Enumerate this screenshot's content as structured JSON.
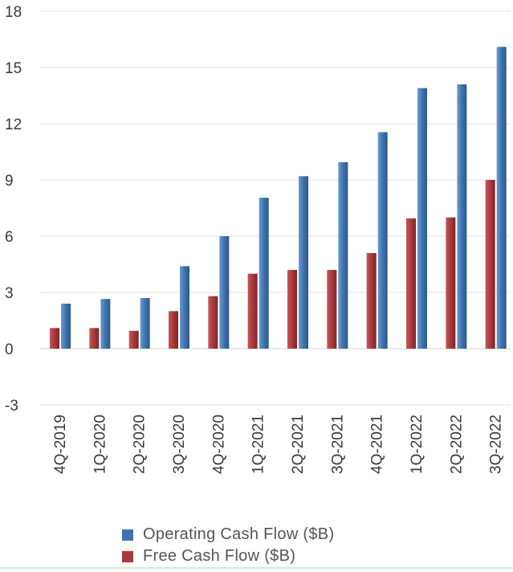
{
  "colors": {
    "operating": "#3f73ad",
    "free": "#a83a3c",
    "grid": "#e3e3e3",
    "axis_text": "#3a3a3a"
  },
  "chart_data": {
    "type": "bar",
    "categories": [
      "4Q-2019",
      "1Q-2020",
      "2Q-2020",
      "3Q-2020",
      "4Q-2020",
      "1Q-2021",
      "2Q-2021",
      "3Q-2021",
      "4Q-2021",
      "1Q-2022",
      "2Q-2022",
      "3Q-2022"
    ],
    "series": [
      {
        "name": "Free Cash Flow ($B)",
        "values": [
          1.1,
          1.1,
          0.95,
          2.0,
          2.8,
          4.0,
          4.2,
          4.2,
          5.1,
          6.95,
          7.0,
          9.0
        ]
      },
      {
        "name": "Operating Cash Flow ($B)",
        "values": [
          2.4,
          2.65,
          2.7,
          4.4,
          6.0,
          8.05,
          9.2,
          9.95,
          11.55,
          13.9,
          14.1,
          16.1
        ]
      }
    ],
    "ylim": [
      -3,
      18
    ],
    "yticks": [
      "18",
      "15",
      "12",
      "9",
      "6",
      "3",
      "0",
      "-3"
    ],
    "grid": true,
    "legend_position": "bottom"
  },
  "legend": {
    "items": [
      {
        "label": "Operating Cash Flow ($B)",
        "color": "#3f73ad"
      },
      {
        "label": "Free Cash Flow ($B)",
        "color": "#a83a3c"
      }
    ]
  }
}
